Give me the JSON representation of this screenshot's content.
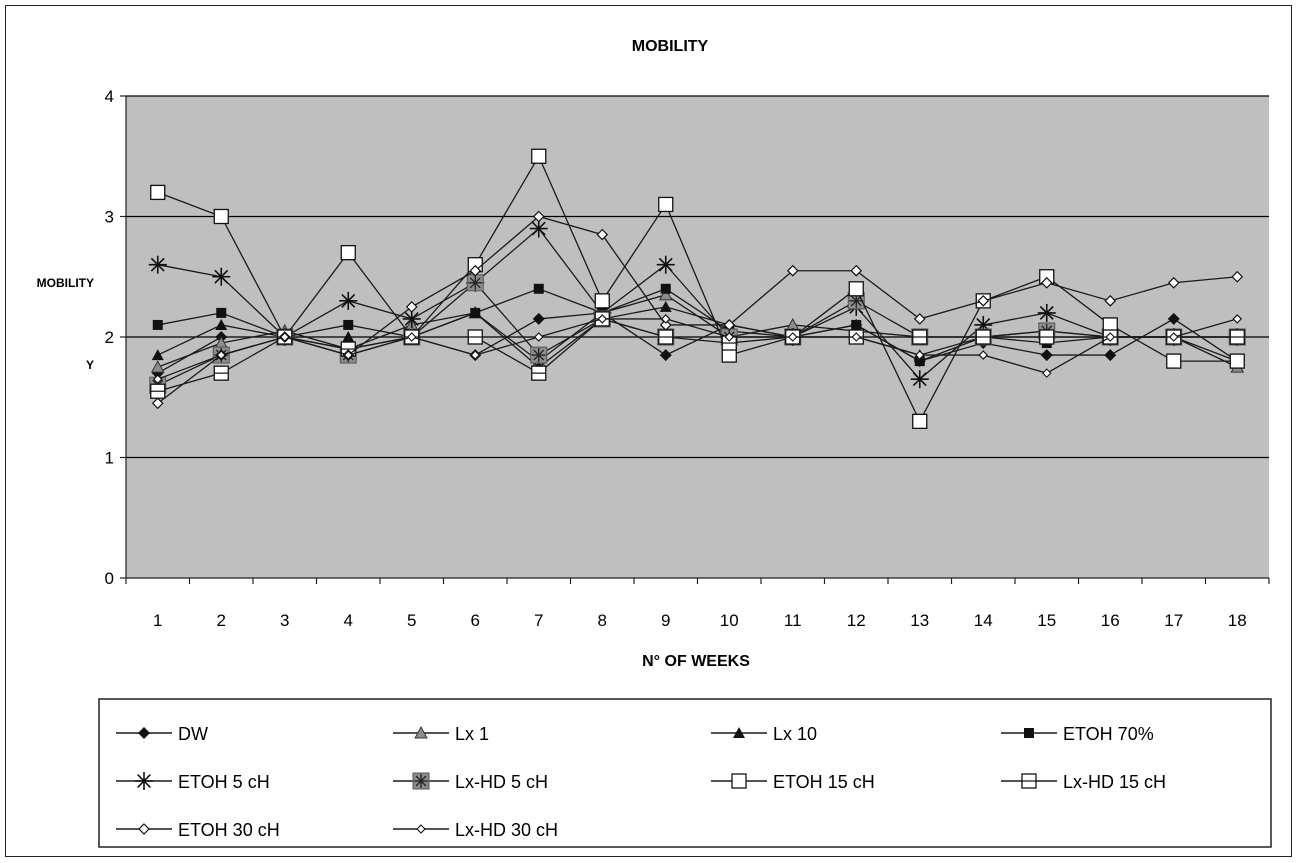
{
  "chart_data": {
    "type": "line",
    "title": "MOBILITY",
    "xlabel": "N° OF WEEKS",
    "ylabel": "MOBILITY",
    "ylabel_suffix": "Y",
    "x": [
      1,
      2,
      3,
      4,
      5,
      6,
      7,
      8,
      9,
      10,
      11,
      12,
      13,
      14,
      15,
      16,
      17,
      18
    ],
    "ylim": [
      0,
      4
    ],
    "yticks": [
      0,
      1,
      2,
      3,
      4
    ],
    "grid": true,
    "legend_position": "bottom",
    "series": [
      {
        "name": "DW",
        "marker": "diamond-filled",
        "values": [
          1.7,
          2.0,
          2.0,
          1.9,
          2.0,
          1.85,
          2.15,
          2.2,
          1.85,
          2.1,
          2.0,
          2.1,
          1.8,
          1.95,
          1.85,
          1.85,
          2.15,
          1.8
        ]
      },
      {
        "name": "Lx 1",
        "marker": "triangle-gray",
        "values": [
          1.75,
          1.95,
          2.05,
          1.9,
          2.1,
          2.2,
          1.8,
          2.2,
          2.35,
          2.0,
          2.1,
          2.05,
          2.0,
          2.0,
          2.05,
          2.0,
          2.0,
          1.75
        ]
      },
      {
        "name": "Lx 10",
        "marker": "triangle-filled",
        "values": [
          1.85,
          2.1,
          2.0,
          2.0,
          2.0,
          2.2,
          1.75,
          2.15,
          2.25,
          2.1,
          2.0,
          2.0,
          1.85,
          2.0,
          2.0,
          2.0,
          2.0,
          1.8
        ]
      },
      {
        "name": "ETOH 70%",
        "marker": "square-filled",
        "values": [
          2.1,
          2.2,
          2.0,
          2.1,
          2.0,
          2.2,
          2.4,
          2.2,
          2.4,
          2.05,
          2.0,
          2.1,
          1.8,
          2.0,
          1.95,
          2.0,
          2.0,
          2.0
        ]
      },
      {
        "name": "ETOH 5 cH",
        "marker": "star",
        "values": [
          2.6,
          2.5,
          2.0,
          2.3,
          2.15,
          2.45,
          2.9,
          2.2,
          2.6,
          2.0,
          2.0,
          2.25,
          1.65,
          2.1,
          2.2,
          2.0,
          2.0,
          2.0
        ]
      },
      {
        "name": "Lx-HD 5 cH",
        "marker": "square-gray",
        "values": [
          1.6,
          1.85,
          2.0,
          1.85,
          2.0,
          2.45,
          1.85,
          2.15,
          2.0,
          2.0,
          2.0,
          2.3,
          2.0,
          2.0,
          2.05,
          2.0,
          2.0,
          2.0
        ]
      },
      {
        "name": "ETOH 15 cH",
        "marker": "square-open",
        "values": [
          3.2,
          3.0,
          2.0,
          2.7,
          2.0,
          2.6,
          3.5,
          2.3,
          3.1,
          1.85,
          2.0,
          2.4,
          1.3,
          2.3,
          2.5,
          2.1,
          1.8,
          1.8
        ]
      },
      {
        "name": "Lx-HD 15 cH",
        "marker": "square-open-cross",
        "values": [
          1.55,
          1.7,
          2.0,
          1.9,
          2.0,
          2.0,
          1.7,
          2.15,
          2.0,
          1.95,
          2.0,
          2.0,
          2.0,
          2.0,
          2.0,
          2.0,
          2.0,
          2.0
        ]
      },
      {
        "name": "ETOH 30 cH",
        "marker": "diamond-open",
        "values": [
          1.45,
          1.85,
          2.0,
          1.85,
          2.25,
          2.55,
          3.0,
          2.85,
          2.1,
          2.1,
          2.55,
          2.55,
          2.15,
          2.3,
          2.45,
          2.3,
          2.45,
          2.5
        ]
      },
      {
        "name": "Lx-HD 30 cH",
        "marker": "diamond-open-small",
        "values": [
          1.65,
          1.85,
          2.0,
          1.85,
          2.0,
          1.85,
          2.0,
          2.15,
          2.15,
          2.0,
          2.0,
          2.0,
          1.85,
          1.85,
          1.7,
          2.0,
          2.0,
          2.15
        ]
      }
    ]
  },
  "colors": {
    "plot_background": "#bfbfbf",
    "gridline": "#000000",
    "series_line": "#1a1a1a",
    "marker_gray": "#8c8c8c"
  }
}
